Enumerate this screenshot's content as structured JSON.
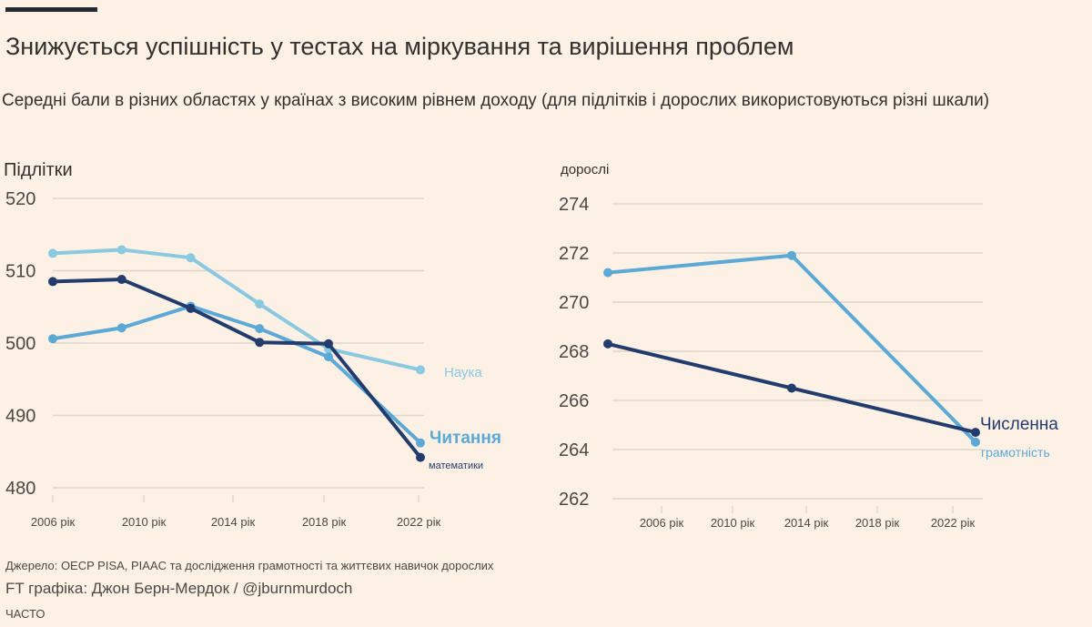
{
  "header": {
    "title": "Знижується успішність у тестах на міркування та вирішення проблем",
    "subtitle": "Середні бали в різних областях у країнах з високим рівнем доходу (для підлітків і дорослих використовуються різні шкали)"
  },
  "footer": {
    "source": "Джерело: OECP PISA, PIAAC та дослідження грамотності та життєвих навичок дорослих",
    "credit": "FT графіка: Джон Берн-Мердок / @jburnmurdoch",
    "tag": "ЧАСТО"
  },
  "colors": {
    "background": "#fdf1e5",
    "grid": "#e2d6cb",
    "dark_blue": "#233c6e",
    "mid_blue": "#5da9d6",
    "light_blue": "#8ac9df",
    "text": "#33302e",
    "axis_text": "#4d4845"
  },
  "chart_data": [
    {
      "type": "line",
      "title": "Підлітки",
      "ylim": [
        480,
        520
      ],
      "yticks": [
        480,
        490,
        500,
        510,
        520
      ],
      "x": [
        2006,
        2009,
        2012,
        2015,
        2018,
        2022
      ],
      "xtick_labels": [
        "2006 рік",
        "2010 рік",
        "2014 рік",
        "2018 рік",
        "2022 рік"
      ],
      "series": [
        {
          "name": "Наука",
          "color": "#8ac9df",
          "values": [
            512.4,
            512.9,
            511.8,
            505.4,
            499.2,
            496.3
          ]
        },
        {
          "name": "Читання",
          "color": "#5da9d6",
          "values": [
            500.6,
            502.1,
            505.1,
            502.0,
            498.1,
            486.2
          ]
        },
        {
          "name": "математики",
          "color": "#233c6e",
          "values": [
            508.5,
            508.8,
            504.8,
            500.1,
            499.9,
            484.2
          ]
        }
      ]
    },
    {
      "type": "line",
      "title": "дорослі",
      "ylim": [
        262,
        274
      ],
      "yticks": [
        262,
        264,
        266,
        268,
        270,
        272,
        274
      ],
      "x": [
        2003,
        2013,
        2023
      ],
      "xtick_labels": [
        "2006 рік",
        "2010 рік",
        "2014 рік",
        "2018 рік",
        "2022 рік"
      ],
      "series": [
        {
          "name": "грамотність",
          "color": "#5da9d6",
          "values": [
            271.2,
            271.9,
            264.3
          ]
        },
        {
          "name": "Численна",
          "color": "#233c6e",
          "values": [
            268.3,
            266.5,
            264.7
          ]
        }
      ]
    }
  ]
}
